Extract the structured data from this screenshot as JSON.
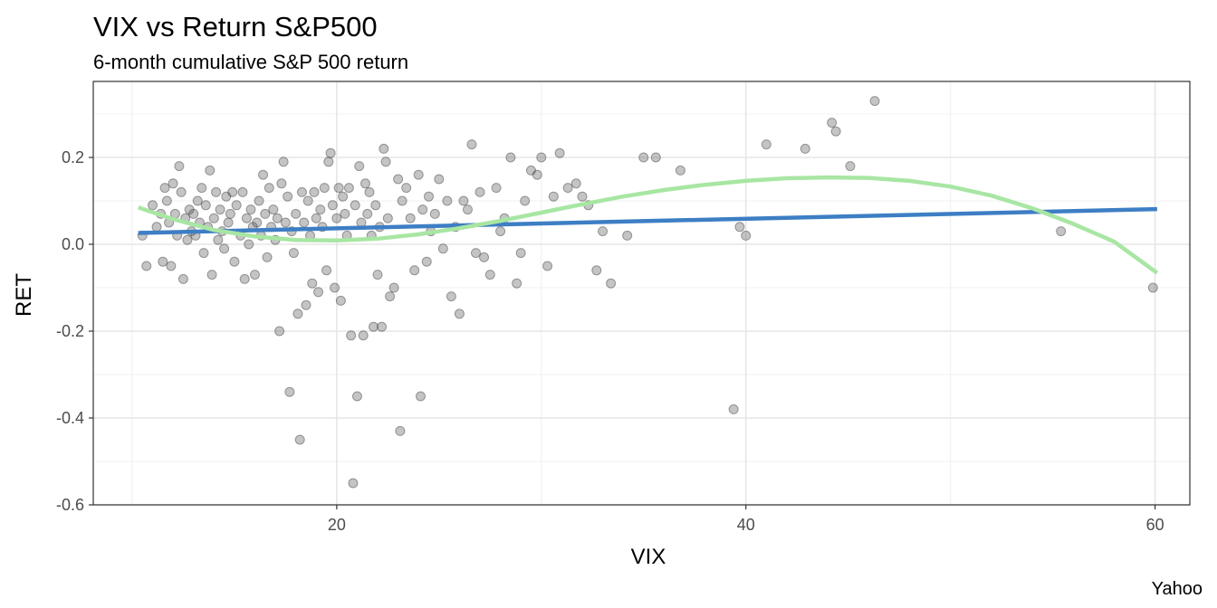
{
  "chart_data": {
    "type": "scatter",
    "title": "VIX vs Return S&P500",
    "subtitle": "6-month cumulative S&P 500 return",
    "xlabel": "VIX",
    "ylabel": "RET",
    "caption": "Yahoo",
    "xlim": [
      8.1,
      61.7
    ],
    "ylim": [
      -0.6,
      0.375
    ],
    "x_ticks": [
      20,
      40,
      60
    ],
    "y_ticks": [
      -0.6,
      -0.4,
      -0.2,
      0.0,
      0.2
    ],
    "x_tick_labels": [
      "20",
      "40",
      "60"
    ],
    "y_tick_labels": [
      "-0.6",
      "-0.4",
      "-0.2",
      "0.0",
      "0.2"
    ],
    "grid": true,
    "point_color": "#555555",
    "points": [
      [
        10.5,
        0.02
      ],
      [
        10.7,
        -0.05
      ],
      [
        11.0,
        0.09
      ],
      [
        11.2,
        0.04
      ],
      [
        11.4,
        0.07
      ],
      [
        11.5,
        -0.04
      ],
      [
        11.6,
        0.13
      ],
      [
        11.7,
        0.1
      ],
      [
        11.8,
        0.05
      ],
      [
        11.9,
        -0.05
      ],
      [
        12.0,
        0.14
      ],
      [
        12.1,
        0.07
      ],
      [
        12.2,
        0.02
      ],
      [
        12.3,
        0.18
      ],
      [
        12.4,
        0.12
      ],
      [
        12.5,
        -0.08
      ],
      [
        12.6,
        0.06
      ],
      [
        12.7,
        0.01
      ],
      [
        12.8,
        0.08
      ],
      [
        12.9,
        0.03
      ],
      [
        13.0,
        0.07
      ],
      [
        13.1,
        0.02
      ],
      [
        13.2,
        0.1
      ],
      [
        13.3,
        0.05
      ],
      [
        13.4,
        0.13
      ],
      [
        13.5,
        -0.02
      ],
      [
        13.6,
        0.09
      ],
      [
        13.7,
        0.04
      ],
      [
        13.8,
        0.17
      ],
      [
        13.9,
        -0.07
      ],
      [
        14.0,
        0.06
      ],
      [
        14.1,
        0.12
      ],
      [
        14.2,
        0.01
      ],
      [
        14.3,
        0.08
      ],
      [
        14.4,
        0.03
      ],
      [
        14.5,
        -0.01
      ],
      [
        14.6,
        0.11
      ],
      [
        14.7,
        0.05
      ],
      [
        14.8,
        0.07
      ],
      [
        14.9,
        0.12
      ],
      [
        15.0,
        -0.04
      ],
      [
        15.1,
        0.09
      ],
      [
        15.3,
        0.02
      ],
      [
        15.4,
        0.12
      ],
      [
        15.5,
        -0.08
      ],
      [
        15.6,
        0.06
      ],
      [
        15.7,
        0.0
      ],
      [
        15.8,
        0.08
      ],
      [
        15.9,
        0.04
      ],
      [
        16.0,
        -0.07
      ],
      [
        16.1,
        0.05
      ],
      [
        16.2,
        0.1
      ],
      [
        16.3,
        0.02
      ],
      [
        16.4,
        0.16
      ],
      [
        16.5,
        0.07
      ],
      [
        16.6,
        -0.03
      ],
      [
        16.7,
        0.13
      ],
      [
        16.8,
        0.04
      ],
      [
        16.9,
        0.08
      ],
      [
        17.0,
        0.01
      ],
      [
        17.1,
        0.06
      ],
      [
        17.2,
        -0.2
      ],
      [
        17.3,
        0.14
      ],
      [
        17.4,
        0.19
      ],
      [
        17.5,
        0.05
      ],
      [
        17.6,
        0.11
      ],
      [
        17.7,
        -0.34
      ],
      [
        17.8,
        0.03
      ],
      [
        17.9,
        -0.02
      ],
      [
        18.0,
        0.07
      ],
      [
        18.1,
        -0.16
      ],
      [
        18.2,
        -0.45
      ],
      [
        18.3,
        0.12
      ],
      [
        18.4,
        0.05
      ],
      [
        18.5,
        -0.14
      ],
      [
        18.6,
        0.1
      ],
      [
        18.7,
        0.02
      ],
      [
        18.8,
        -0.09
      ],
      [
        18.9,
        0.12
      ],
      [
        19.0,
        0.06
      ],
      [
        19.1,
        -0.11
      ],
      [
        19.2,
        0.08
      ],
      [
        19.3,
        0.04
      ],
      [
        19.4,
        0.13
      ],
      [
        19.5,
        -0.06
      ],
      [
        19.6,
        0.19
      ],
      [
        19.7,
        0.21
      ],
      [
        19.8,
        0.09
      ],
      [
        19.9,
        -0.1
      ],
      [
        20.0,
        0.06
      ],
      [
        20.1,
        0.13
      ],
      [
        20.2,
        -0.13
      ],
      [
        20.3,
        0.11
      ],
      [
        20.4,
        0.07
      ],
      [
        20.5,
        0.02
      ],
      [
        20.6,
        0.13
      ],
      [
        20.7,
        -0.21
      ],
      [
        20.8,
        -0.55
      ],
      [
        20.9,
        0.09
      ],
      [
        21.0,
        -0.35
      ],
      [
        21.1,
        0.18
      ],
      [
        21.2,
        0.05
      ],
      [
        21.3,
        -0.21
      ],
      [
        21.4,
        0.14
      ],
      [
        21.5,
        0.07
      ],
      [
        21.6,
        0.12
      ],
      [
        21.7,
        0.02
      ],
      [
        21.8,
        -0.19
      ],
      [
        21.9,
        0.09
      ],
      [
        22.0,
        -0.07
      ],
      [
        22.1,
        0.04
      ],
      [
        22.2,
        -0.19
      ],
      [
        22.3,
        0.22
      ],
      [
        22.4,
        0.19
      ],
      [
        22.5,
        0.06
      ],
      [
        22.6,
        -0.12
      ],
      [
        22.8,
        -0.1
      ],
      [
        23.0,
        0.15
      ],
      [
        23.1,
        -0.43
      ],
      [
        23.2,
        0.1
      ],
      [
        23.4,
        0.13
      ],
      [
        23.6,
        0.06
      ],
      [
        23.8,
        -0.06
      ],
      [
        24.0,
        0.16
      ],
      [
        24.1,
        -0.35
      ],
      [
        24.2,
        0.08
      ],
      [
        24.4,
        -0.04
      ],
      [
        24.5,
        0.11
      ],
      [
        24.6,
        0.03
      ],
      [
        24.8,
        0.07
      ],
      [
        25.0,
        0.15
      ],
      [
        25.2,
        -0.01
      ],
      [
        25.4,
        0.1
      ],
      [
        25.6,
        -0.12
      ],
      [
        25.8,
        0.04
      ],
      [
        26.0,
        -0.16
      ],
      [
        26.2,
        0.1
      ],
      [
        26.4,
        0.08
      ],
      [
        26.6,
        0.23
      ],
      [
        26.8,
        -0.02
      ],
      [
        27.0,
        0.12
      ],
      [
        27.2,
        -0.03
      ],
      [
        27.5,
        -0.07
      ],
      [
        27.8,
        0.13
      ],
      [
        28.0,
        0.03
      ],
      [
        28.2,
        0.06
      ],
      [
        28.5,
        0.2
      ],
      [
        28.8,
        -0.09
      ],
      [
        29.0,
        -0.02
      ],
      [
        29.2,
        0.1
      ],
      [
        29.5,
        0.17
      ],
      [
        29.8,
        0.16
      ],
      [
        30.0,
        0.2
      ],
      [
        30.3,
        -0.05
      ],
      [
        30.6,
        0.11
      ],
      [
        30.9,
        0.21
      ],
      [
        31.3,
        0.13
      ],
      [
        31.7,
        0.14
      ],
      [
        32.0,
        0.11
      ],
      [
        32.3,
        0.09
      ],
      [
        32.7,
        -0.06
      ],
      [
        33.0,
        0.03
      ],
      [
        33.4,
        -0.09
      ],
      [
        34.2,
        0.02
      ],
      [
        35.0,
        0.2
      ],
      [
        35.6,
        0.2
      ],
      [
        36.8,
        0.17
      ],
      [
        39.4,
        -0.38
      ],
      [
        39.7,
        0.04
      ],
      [
        40.0,
        0.02
      ],
      [
        41.0,
        0.23
      ],
      [
        42.9,
        0.22
      ],
      [
        44.2,
        0.28
      ],
      [
        44.4,
        0.26
      ],
      [
        45.1,
        0.18
      ],
      [
        46.3,
        0.33
      ],
      [
        55.4,
        0.03
      ],
      [
        59.9,
        -0.1
      ]
    ],
    "linear_fit": {
      "name": "lm",
      "color": "#3d7ec4",
      "x": [
        10.3,
        60.1
      ],
      "y": [
        0.026,
        0.081
      ]
    },
    "smooth_fit": {
      "name": "loess",
      "color": "#a8e6a3",
      "x": [
        10.3,
        12.0,
        14.0,
        16.0,
        18.0,
        20.0,
        22.0,
        24.0,
        26.0,
        28.0,
        30.0,
        32.0,
        34.0,
        36.0,
        38.0,
        40.0,
        42.0,
        44.0,
        46.0,
        48.0,
        50.0,
        52.0,
        54.0,
        56.0,
        58.0,
        60.1
      ],
      "y": [
        0.085,
        0.058,
        0.033,
        0.018,
        0.01,
        0.009,
        0.013,
        0.023,
        0.037,
        0.054,
        0.073,
        0.092,
        0.11,
        0.125,
        0.137,
        0.146,
        0.152,
        0.154,
        0.153,
        0.146,
        0.133,
        0.112,
        0.083,
        0.047,
        0.006,
        -0.066
      ]
    }
  }
}
